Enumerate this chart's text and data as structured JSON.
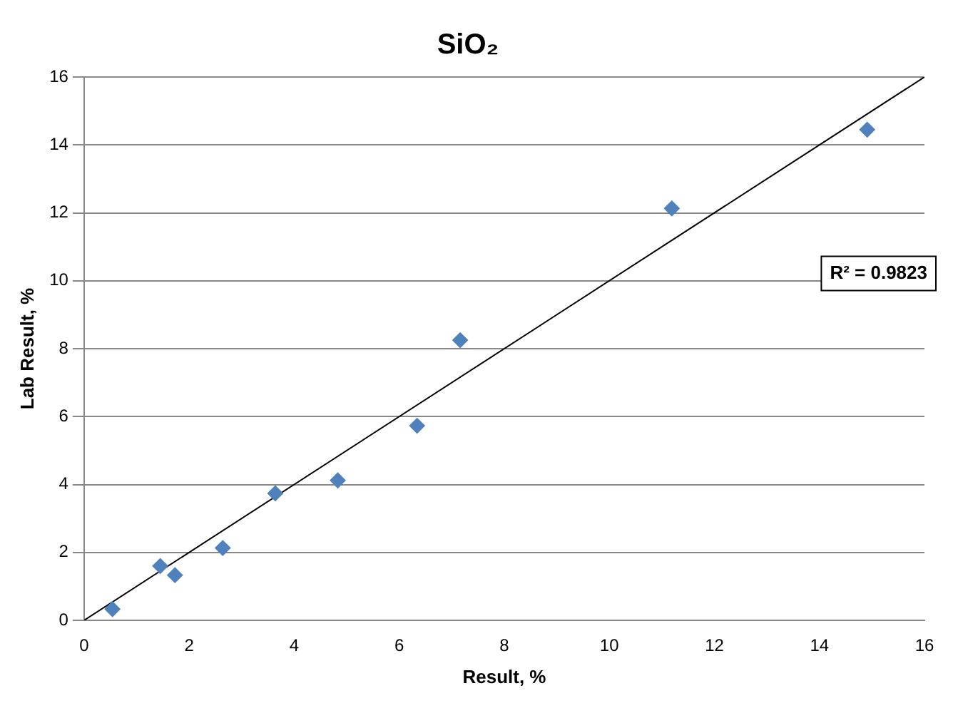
{
  "chart_data": {
    "type": "scatter",
    "title": "SiO₂",
    "xlabel": "Result, %",
    "ylabel": "Lab Result, %",
    "series": [
      {
        "color": "#4f81bd",
        "marker": "diamond",
        "x": [
          0.54,
          1.45,
          1.73,
          2.64,
          3.64,
          4.83,
          6.34,
          7.16,
          11.19,
          14.91
        ],
        "values": [
          0.33,
          1.6,
          1.33,
          2.13,
          3.74,
          4.12,
          5.73,
          8.25,
          12.13,
          14.45
        ]
      },
      {
        "type": "line",
        "color": "#000000",
        "marker": "none",
        "line_style": "solid",
        "x": [
          0,
          16
        ],
        "values": [
          0,
          16
        ]
      }
    ],
    "xlim": [
      0,
      16
    ],
    "xticks": [
      0,
      2,
      4,
      6,
      8,
      10,
      12,
      14,
      16
    ],
    "ylim": [
      0,
      16
    ],
    "yticks": [
      0,
      2,
      4,
      6,
      8,
      10,
      12,
      14,
      16
    ],
    "grid": "y",
    "legend": false,
    "annotations": [
      "R² = 0.9823"
    ]
  }
}
